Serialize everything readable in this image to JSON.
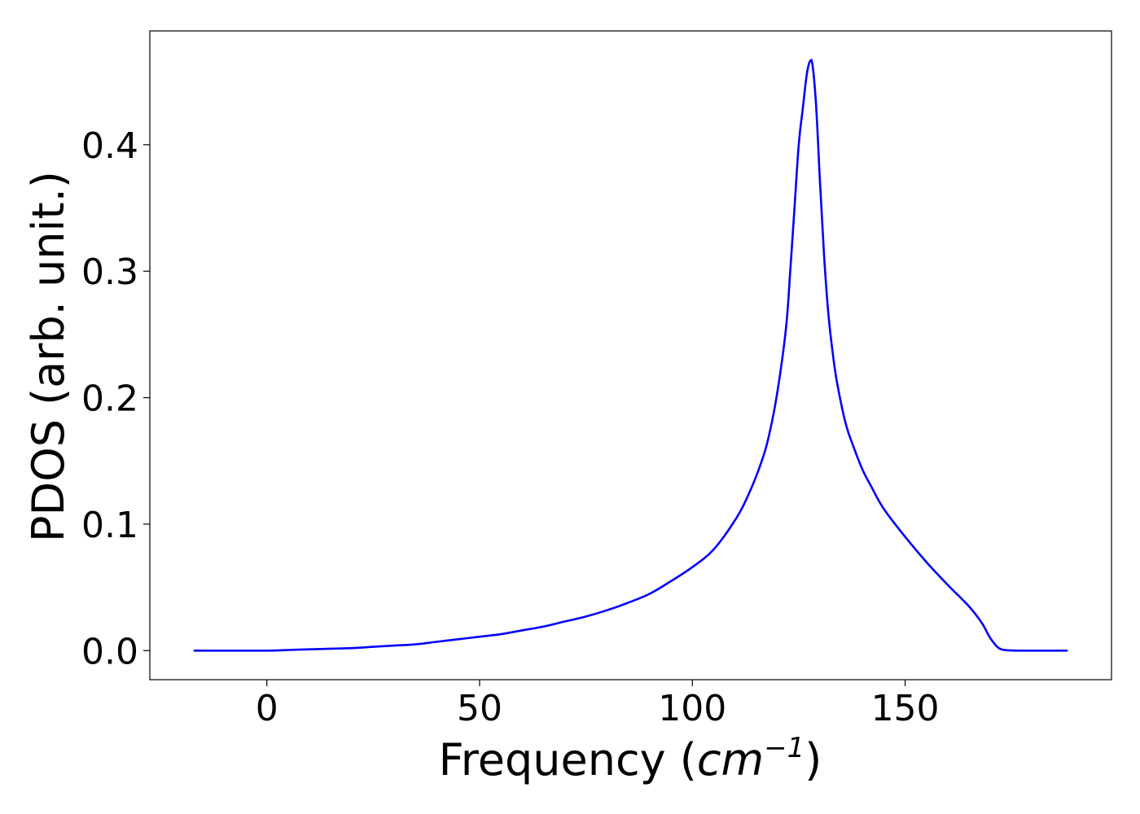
{
  "chart_data": {
    "type": "line",
    "xlabel": {
      "prefix": "Frequency (",
      "unit": "cm",
      "exponent": "−1",
      "suffix": ")"
    },
    "ylabel": "PDOS (arb. unit.)",
    "xlim": [
      -27.5,
      198.5
    ],
    "ylim": [
      -0.023,
      0.49
    ],
    "x_ticks": [
      0,
      50,
      100,
      150
    ],
    "x_tick_labels": [
      "0",
      "50",
      "100",
      "150"
    ],
    "y_ticks": [
      0.0,
      0.1,
      0.2,
      0.3,
      0.4
    ],
    "y_tick_labels": [
      "0.0",
      "0.1",
      "0.2",
      "0.3",
      "0.4"
    ],
    "grid": false,
    "line_color": "#0000ff",
    "series": [
      {
        "x": [
          -17,
          0,
          5,
          10,
          15,
          20,
          25,
          30,
          35,
          40,
          45,
          50,
          55,
          60,
          65,
          70,
          75,
          80,
          85,
          90,
          95,
          100,
          105,
          110,
          113,
          116,
          118,
          120,
          122,
          123,
          124,
          125,
          126,
          127,
          128,
          129,
          130,
          131,
          132,
          133,
          134,
          136,
          138,
          140,
          142,
          145,
          150,
          155,
          160,
          165,
          168,
          170,
          172,
          174,
          176,
          180,
          188
        ],
        "y": [
          0.0,
          0.0,
          0.0005,
          0.001,
          0.0015,
          0.002,
          0.003,
          0.004,
          0.005,
          0.007,
          0.009,
          0.011,
          0.013,
          0.016,
          0.019,
          0.023,
          0.027,
          0.032,
          0.038,
          0.045,
          0.055,
          0.066,
          0.08,
          0.103,
          0.122,
          0.147,
          0.17,
          0.205,
          0.255,
          0.3,
          0.35,
          0.4,
          0.43,
          0.458,
          0.467,
          0.435,
          0.37,
          0.31,
          0.265,
          0.235,
          0.212,
          0.18,
          0.16,
          0.143,
          0.13,
          0.112,
          0.09,
          0.07,
          0.052,
          0.035,
          0.022,
          0.01,
          0.002,
          0.0003,
          0.0,
          0.0,
          0.0
        ]
      }
    ]
  }
}
